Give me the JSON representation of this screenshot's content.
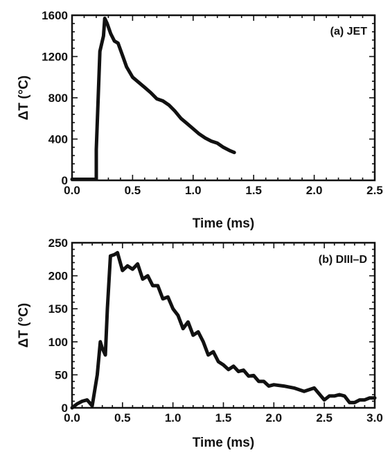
{
  "chart_data": [
    {
      "type": "line",
      "annotation": "(a) JET",
      "xlabel": "Time (ms)",
      "ylabel": "ΔT (°C)",
      "xlim": [
        0,
        2.5
      ],
      "ylim": [
        0,
        1600
      ],
      "xticks": [
        "0.0",
        "0.5",
        "1.0",
        "1.5",
        "2.0",
        "2.5"
      ],
      "yticks": [
        "0",
        "400",
        "800",
        "1200",
        "1600"
      ],
      "xticks_values": [
        0,
        0.5,
        1.0,
        1.5,
        2.0,
        2.5
      ],
      "yticks_values": [
        0,
        400,
        800,
        1200,
        1600
      ],
      "grid": false,
      "series": [
        {
          "x": [
            0.0,
            0.2,
            0.2,
            0.23,
            0.26,
            0.27,
            0.29,
            0.32,
            0.35,
            0.38,
            0.42,
            0.45,
            0.5,
            0.55,
            0.6,
            0.65,
            0.7,
            0.75,
            0.8,
            0.85,
            0.9,
            0.95,
            1.0,
            1.05,
            1.1,
            1.15,
            1.2,
            1.25,
            1.3,
            1.34
          ],
          "y": [
            10,
            10,
            300,
            1250,
            1400,
            1570,
            1520,
            1420,
            1350,
            1330,
            1200,
            1100,
            1000,
            950,
            900,
            850,
            790,
            770,
            730,
            670,
            600,
            550,
            500,
            450,
            410,
            380,
            360,
            320,
            290,
            270
          ]
        }
      ]
    },
    {
      "type": "line",
      "annotation": "(b) DIII–D",
      "xlabel": "Time (ms)",
      "ylabel": "ΔT (°C)",
      "xlim": [
        0,
        3.0
      ],
      "ylim": [
        0,
        250
      ],
      "xticks": [
        "0.0",
        "0.5",
        "1.0",
        "1.5",
        "2.0",
        "2.5",
        "3.0"
      ],
      "yticks": [
        "0",
        "50",
        "100",
        "150",
        "200",
        "250"
      ],
      "xticks_values": [
        0,
        0.5,
        1.0,
        1.5,
        2.0,
        2.5,
        3.0
      ],
      "yticks_values": [
        0,
        50,
        100,
        150,
        200,
        250
      ],
      "grid": false,
      "series": [
        {
          "x": [
            0.0,
            0.05,
            0.1,
            0.15,
            0.2,
            0.25,
            0.28,
            0.3,
            0.33,
            0.35,
            0.38,
            0.42,
            0.45,
            0.5,
            0.55,
            0.6,
            0.65,
            0.7,
            0.75,
            0.8,
            0.85,
            0.9,
            0.95,
            1.0,
            1.05,
            1.1,
            1.15,
            1.2,
            1.25,
            1.3,
            1.35,
            1.4,
            1.45,
            1.5,
            1.55,
            1.6,
            1.65,
            1.7,
            1.75,
            1.8,
            1.85,
            1.9,
            1.95,
            2.0,
            2.1,
            2.2,
            2.3,
            2.4,
            2.5,
            2.55,
            2.6,
            2.65,
            2.7,
            2.75,
            2.8,
            2.85,
            2.9,
            2.95,
            3.0
          ],
          "y": [
            0,
            6,
            10,
            12,
            3,
            50,
            100,
            90,
            80,
            150,
            230,
            232,
            235,
            208,
            215,
            210,
            218,
            195,
            200,
            185,
            185,
            165,
            168,
            150,
            140,
            120,
            130,
            110,
            115,
            100,
            80,
            85,
            70,
            65,
            58,
            63,
            55,
            57,
            48,
            49,
            40,
            40,
            33,
            35,
            33,
            30,
            25,
            30,
            12,
            18,
            18,
            20,
            18,
            8,
            8,
            12,
            12,
            15,
            15
          ]
        }
      ]
    }
  ]
}
